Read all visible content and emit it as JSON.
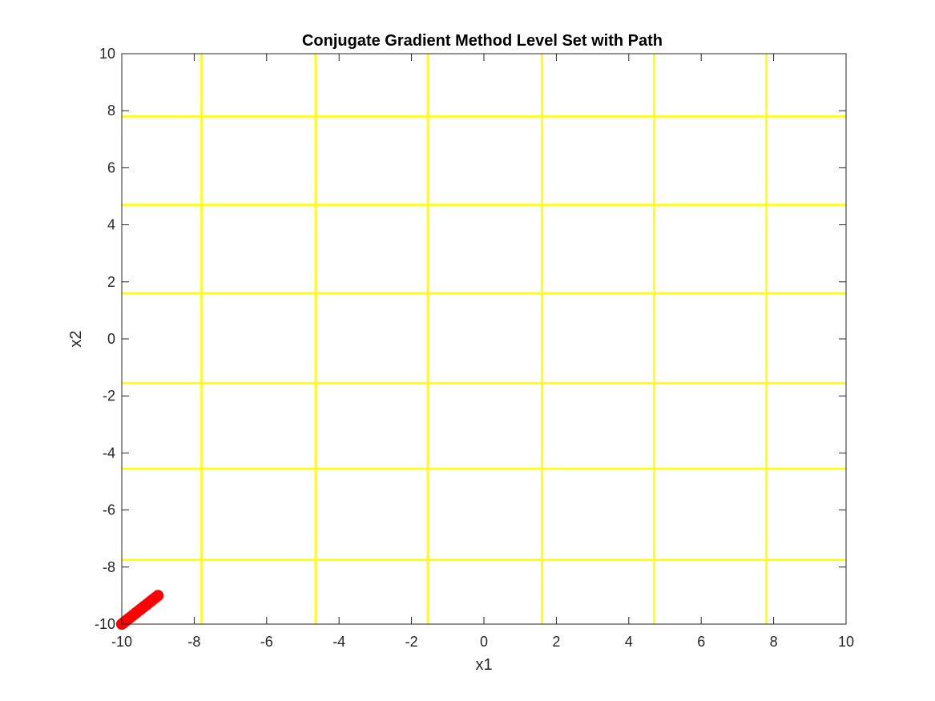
{
  "chart_data": {
    "type": "line",
    "title": "Conjugate Gradient Method Level Set with Path",
    "xlabel": "x1",
    "ylabel": "x2",
    "xlim": [
      -10,
      10
    ],
    "ylim": [
      -10,
      10
    ],
    "xticks": [
      -10,
      -8,
      -6,
      -4,
      -2,
      0,
      2,
      4,
      6,
      8,
      10
    ],
    "yticks": [
      -10,
      -8,
      -6,
      -4,
      -2,
      0,
      2,
      4,
      6,
      8,
      10
    ],
    "xtick_labels": [
      "-10",
      "-8",
      "-6",
      "-4",
      "-2",
      "0",
      "2",
      "4",
      "6",
      "8",
      "10"
    ],
    "ytick_labels": [
      "-10",
      "-8",
      "-6",
      "-4",
      "-2",
      "0",
      "2",
      "4",
      "6",
      "8",
      "10"
    ],
    "grid": false,
    "level_set": {
      "color": "#ffff00",
      "vertical_lines_x": [
        -7.8,
        -4.65,
        -1.55,
        1.6,
        4.7,
        7.8
      ],
      "horizontal_lines_y": [
        7.8,
        4.7,
        1.6,
        -1.55,
        -4.55,
        -7.75
      ]
    },
    "path": {
      "color": "#ff0000",
      "marker": "circle",
      "x": [
        -10,
        -9.8,
        -9.6,
        -9.4,
        -9.2,
        -9.0
      ],
      "y": [
        -10,
        -9.8,
        -9.6,
        -9.4,
        -9.2,
        -9.0
      ]
    }
  }
}
